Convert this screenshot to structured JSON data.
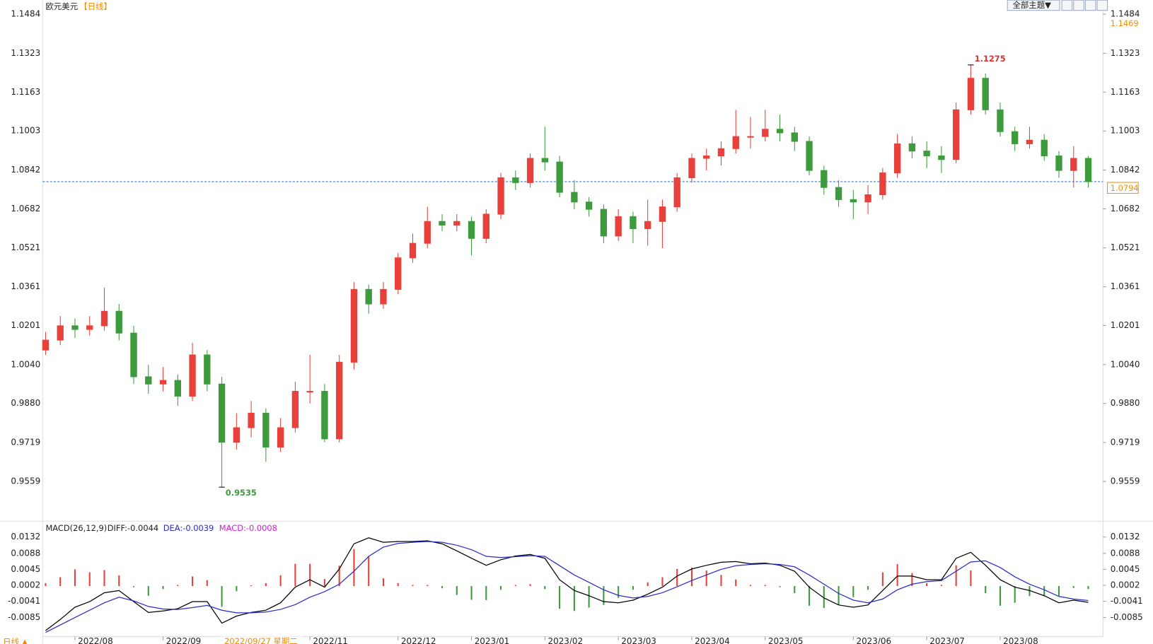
{
  "chart_data": {
    "type": "candlestick",
    "title": "欧元美元",
    "period": "【日线】",
    "theme_button": "全部主题▼",
    "crosshair_date": "2022/09/27 星期二",
    "period_switch": "日线 ▲",
    "up_color": "#e8403a",
    "down_color": "#3d9b3d",
    "categories": [
      null,
      null,
      "2022/08",
      null,
      null,
      null,
      null,
      null,
      "2022/09",
      null,
      null,
      null,
      null,
      null,
      null,
      null,
      null,
      null,
      "2022/11",
      null,
      null,
      null,
      null,
      null,
      "2022/12",
      null,
      null,
      null,
      null,
      "2023/01",
      null,
      null,
      null,
      null,
      "2023/02",
      null,
      null,
      null,
      null,
      "2023/03",
      null,
      null,
      null,
      null,
      "2023/04",
      null,
      null,
      null,
      null,
      "2023/05",
      null,
      null,
      null,
      null,
      null,
      "2023/06",
      null,
      null,
      null,
      null,
      "2023/07",
      null,
      null,
      null,
      null,
      "2023/08",
      null,
      null,
      null,
      null,
      null,
      null
    ],
    "candles": [
      [
        1.01,
        1.0175,
        1.008,
        1.0141
      ],
      [
        1.0141,
        1.024,
        1.012,
        1.02
      ],
      [
        1.02,
        1.023,
        1.015,
        1.0185
      ],
      [
        1.0185,
        1.024,
        1.016,
        1.02
      ],
      [
        1.02,
        1.0357,
        1.018,
        1.026
      ],
      [
        1.026,
        1.029,
        1.014,
        1.017
      ],
      [
        1.017,
        1.02,
        0.996,
        0.999
      ],
      [
        0.999,
        1.004,
        0.992,
        0.996
      ],
      [
        0.996,
        1.003,
        0.993,
        0.9975
      ],
      [
        0.9975,
        1.0,
        0.987,
        0.991
      ],
      [
        0.991,
        1.013,
        0.989,
        1.008
      ],
      [
        1.008,
        1.01,
        0.993,
        0.996
      ],
      [
        0.996,
        0.999,
        0.9535,
        0.972
      ],
      [
        0.972,
        0.984,
        0.969,
        0.978
      ],
      [
        0.978,
        0.989,
        0.974,
        0.984
      ],
      [
        0.984,
        0.986,
        0.964,
        0.97
      ],
      [
        0.97,
        0.982,
        0.968,
        0.978
      ],
      [
        0.978,
        0.997,
        0.976,
        0.993
      ],
      [
        0.993,
        1.008,
        0.988,
        0.993
      ],
      [
        0.993,
        0.996,
        0.972,
        0.9734
      ],
      [
        0.9734,
        1.008,
        0.972,
        1.005
      ],
      [
        1.005,
        1.038,
        1.002,
        1.035
      ],
      [
        1.035,
        1.037,
        1.025,
        1.029
      ],
      [
        1.029,
        1.038,
        1.027,
        1.035
      ],
      [
        1.035,
        1.05,
        1.033,
        1.048
      ],
      [
        1.048,
        1.058,
        1.046,
        1.054
      ],
      [
        1.054,
        1.069,
        1.052,
        1.063
      ],
      [
        1.063,
        1.066,
        1.059,
        1.0615
      ],
      [
        1.0615,
        1.066,
        1.059,
        1.063
      ],
      [
        1.063,
        1.065,
        1.049,
        1.056
      ],
      [
        1.056,
        1.068,
        1.054,
        1.066
      ],
      [
        1.066,
        1.083,
        1.064,
        1.081
      ],
      [
        1.081,
        1.084,
        1.076,
        1.079
      ],
      [
        1.079,
        1.091,
        1.077,
        1.089
      ],
      [
        1.089,
        1.102,
        1.084,
        1.0875
      ],
      [
        1.0875,
        1.09,
        1.073,
        1.075
      ],
      [
        1.075,
        1.08,
        1.068,
        1.071
      ],
      [
        1.071,
        1.073,
        1.065,
        1.068
      ],
      [
        1.068,
        1.07,
        1.054,
        1.057
      ],
      [
        1.057,
        1.068,
        1.055,
        1.065
      ],
      [
        1.065,
        1.067,
        1.054,
        1.06
      ],
      [
        1.06,
        1.072,
        1.053,
        1.063
      ],
      [
        1.063,
        1.072,
        1.052,
        1.069
      ],
      [
        1.069,
        1.083,
        1.067,
        1.081
      ],
      [
        1.081,
        1.091,
        1.079,
        1.089
      ],
      [
        1.089,
        1.093,
        1.084,
        1.09
      ],
      [
        1.09,
        1.096,
        1.086,
        1.093
      ],
      [
        1.093,
        1.109,
        1.091,
        1.098
      ],
      [
        1.098,
        1.106,
        1.093,
        1.098
      ],
      [
        1.098,
        1.109,
        1.096,
        1.101
      ],
      [
        1.101,
        1.107,
        1.096,
        1.0995
      ],
      [
        1.0995,
        1.102,
        1.092,
        1.096
      ],
      [
        1.096,
        1.098,
        1.082,
        1.084
      ],
      [
        1.084,
        1.086,
        1.074,
        1.077
      ],
      [
        1.077,
        1.08,
        1.069,
        1.072
      ],
      [
        1.072,
        1.076,
        1.064,
        1.071
      ],
      [
        1.071,
        1.078,
        1.066,
        1.074
      ],
      [
        1.074,
        1.085,
        1.072,
        1.083
      ],
      [
        1.083,
        1.099,
        1.081,
        1.095
      ],
      [
        1.095,
        1.098,
        1.089,
        1.092
      ],
      [
        1.092,
        1.096,
        1.085,
        1.09
      ],
      [
        1.09,
        1.094,
        1.083,
        1.0885
      ],
      [
        1.0885,
        1.112,
        1.087,
        1.109
      ],
      [
        1.109,
        1.1275,
        1.107,
        1.122
      ],
      [
        1.122,
        1.124,
        1.107,
        1.109
      ],
      [
        1.109,
        1.112,
        1.098,
        1.1
      ],
      [
        1.1,
        1.102,
        1.092,
        1.095
      ],
      [
        1.095,
        1.102,
        1.093,
        1.0965
      ],
      [
        1.0965,
        1.099,
        1.088,
        1.09
      ],
      [
        1.09,
        1.092,
        1.081,
        1.084
      ],
      [
        1.084,
        1.094,
        1.077,
        1.089
      ],
      [
        1.089,
        1.09,
        1.077,
        1.0794
      ]
    ],
    "ylim": [
      0.9398,
      1.1542
    ],
    "yticks": [
      1.1484,
      1.1323,
      1.1163,
      1.1003,
      1.0842,
      1.0682,
      1.0521,
      1.0361,
      1.0201,
      {
        "value": 1.004,
        "label": "1.0040"
      },
      {
        "value": 0.988,
        "label": "0.9880"
      },
      0.9719,
      0.9559
    ],
    "grid": false,
    "high_label": 1.1275,
    "low_label": 0.9535,
    "last_price": 1.0794,
    "last_price_color": "#f0900a",
    "marker_price": 1.1469,
    "macd": {
      "params": "MACD(26,12,9)",
      "diff_text": "DIFF:-0.0044",
      "dea_text": "DEA:-0.0039",
      "macd_text": "MACD:-0.0008",
      "ylim": [
        -0.0136,
        0.0169
      ],
      "yticks": [
        0.0132,
        0.0088,
        0.0045,
        0.0002,
        -0.0041,
        -0.0085
      ],
      "series": [
        {
          "name": "DIFF",
          "color": "#000000",
          "values": [
            -0.012,
            -0.009,
            -0.0057,
            -0.0042,
            -0.0018,
            -0.0012,
            -0.0042,
            -0.0071,
            -0.0067,
            -0.0061,
            -0.0042,
            -0.0042,
            -0.01,
            -0.0081,
            -0.0071,
            -0.0065,
            -0.0045,
            -0.0003,
            0.0017,
            -0.0003,
            0.0046,
            0.0114,
            0.013,
            0.0118,
            0.012,
            0.012,
            0.0122,
            0.0114,
            0.0095,
            0.0075,
            0.0056,
            0.0071,
            0.0081,
            0.0085,
            0.0075,
            0.0017,
            -0.0012,
            -0.0026,
            -0.0042,
            -0.0045,
            -0.0038,
            -0.0022,
            -0.0003,
            0.0027,
            0.0046,
            0.0056,
            0.0064,
            0.0066,
            0.006,
            0.0062,
            0.0056,
            0.004,
            -0.0003,
            -0.0032,
            -0.0051,
            -0.0057,
            -0.0051,
            -0.0012,
            0.0027,
            0.0027,
            0.0017,
            0.0017,
            0.0075,
            0.0091,
            0.0056,
            0.0017,
            -0.0003,
            -0.0012,
            -0.0026,
            -0.0045,
            -0.0038,
            -0.0044
          ]
        },
        {
          "name": "DEA",
          "color": "#2b2bc8",
          "values": [
            -0.0125,
            -0.0105,
            -0.0085,
            -0.0065,
            -0.0045,
            -0.003,
            -0.004,
            -0.0055,
            -0.0062,
            -0.0063,
            -0.0058,
            -0.0052,
            -0.0065,
            -0.0072,
            -0.0072,
            -0.007,
            -0.0063,
            -0.005,
            -0.003,
            -0.0015,
            0.0005,
            0.004,
            0.008,
            0.0105,
            0.0115,
            0.0118,
            0.012,
            0.0118,
            0.011,
            0.0098,
            0.008,
            0.0077,
            0.0079,
            0.0082,
            0.008,
            0.0055,
            0.003,
            0.001,
            -0.001,
            -0.0025,
            -0.0032,
            -0.0028,
            -0.0018,
            -0.0002,
            0.0015,
            0.003,
            0.0045,
            0.0055,
            0.0058,
            0.006,
            0.0058,
            0.0052,
            0.003,
            0.0005,
            -0.002,
            -0.0038,
            -0.0045,
            -0.0035,
            -0.001,
            0.0005,
            0.0012,
            0.0015,
            0.004,
            0.0065,
            0.0068,
            0.005,
            0.0025,
            0.0005,
            -0.001,
            -0.0028,
            -0.0035,
            -0.0039
          ]
        }
      ],
      "histogram": [
        0.0008,
        0.0024,
        0.0045,
        0.0037,
        0.0043,
        0.0029,
        -0.0003,
        -0.0026,
        -0.0008,
        0.0003,
        0.0026,
        0.0016,
        -0.0056,
        -0.0014,
        0.0002,
        0.0008,
        0.0029,
        0.006,
        0.006,
        0.0019,
        0.0055,
        0.01,
        0.008,
        0.0021,
        0.0008,
        0.0003,
        0.0003,
        -0.0006,
        -0.0024,
        -0.0037,
        -0.0038,
        -0.001,
        0.0003,
        0.0005,
        -0.0008,
        -0.0061,
        -0.0067,
        -0.0058,
        -0.0051,
        -0.0032,
        -0.001,
        0.001,
        0.0024,
        0.0046,
        0.005,
        0.0042,
        0.003,
        0.0018,
        0.0003,
        0.0003,
        -0.0003,
        -0.0019,
        -0.0053,
        -0.0059,
        -0.005,
        -0.003,
        -0.001,
        0.0037,
        0.0059,
        0.0035,
        0.0008,
        0.0003,
        0.0056,
        0.0042,
        -0.0019,
        -0.0053,
        -0.0045,
        -0.0027,
        -0.0026,
        -0.0027,
        -0.0005,
        -0.0008
      ],
      "macd_text_color": "#d020d0"
    }
  }
}
